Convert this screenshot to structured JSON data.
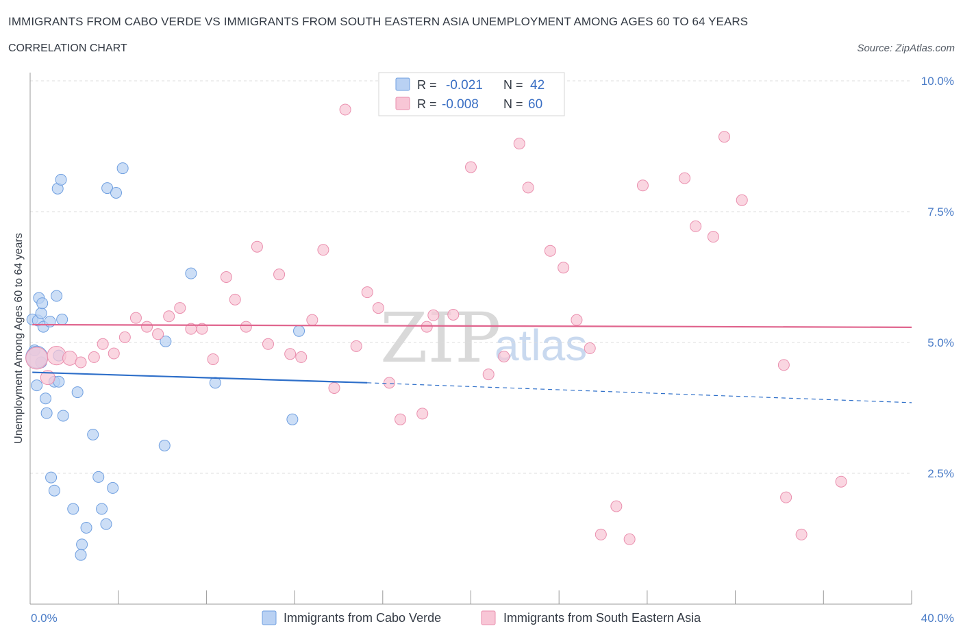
{
  "header": {
    "title": "IMMIGRANTS FROM CABO VERDE VS IMMIGRANTS FROM SOUTH EASTERN ASIA UNEMPLOYMENT AMONG AGES 60 TO 64 YEARS",
    "subtitle": "CORRELATION CHART",
    "source": "Source: ZipAtlas.com"
  },
  "watermark": {
    "zip": "ZIP",
    "atlas": "atlas"
  },
  "colors": {
    "blue_fill": "#b9d1f3",
    "blue_stroke": "#6f9fe0",
    "blue_line": "#2e6fc9",
    "pink_fill": "#f8c6d6",
    "pink_stroke": "#ea8fae",
    "pink_line": "#e0658e",
    "tick_color": "#4a7cc7"
  },
  "legend": {
    "rows": [
      {
        "r_label": "R =",
        "r_value": "-0.021",
        "n_label": "N =",
        "n_value": "42"
      },
      {
        "r_label": "R =",
        "r_value": "-0.008",
        "n_label": "N =",
        "n_value": "60"
      }
    ]
  },
  "chart_data": {
    "type": "scatter",
    "title": "IMMIGRANTS FROM CABO VERDE VS IMMIGRANTS FROM SOUTH EASTERN ASIA UNEMPLOYMENT AMONG AGES 60 TO 64 YEARS",
    "subtitle": "CORRELATION CHART",
    "xlabel": "",
    "ylabel": "Unemployment Among Ages 60 to 64 years",
    "xlim": [
      0,
      40
    ],
    "ylim": [
      0,
      10
    ],
    "x_tick_labels": [
      "0.0%",
      "40.0%"
    ],
    "y_ticks": [
      {
        "value": 2.5,
        "label": "2.5%"
      },
      {
        "value": 5.0,
        "label": "5.0%"
      },
      {
        "value": 7.5,
        "label": "7.5%"
      },
      {
        "value": 10.0,
        "label": "10.0%"
      }
    ],
    "grid": true,
    "legend_position": "top-center",
    "series": [
      {
        "name": "Immigrants from Cabo Verde",
        "color": "blue",
        "R": -0.021,
        "N": 42,
        "trend": {
          "x_start": 0.1,
          "y_start": 4.43,
          "x_solid_end": 15.3,
          "y_solid_end": 4.23,
          "x_end": 40.0,
          "y_end": 3.85
        },
        "points": [
          {
            "x": 0.1,
            "y": 5.44,
            "s": 1
          },
          {
            "x": 0.2,
            "y": 4.85,
            "s": 1
          },
          {
            "x": 0.3,
            "y": 4.18,
            "s": 1
          },
          {
            "x": 0.35,
            "y": 5.42,
            "s": 1
          },
          {
            "x": 0.4,
            "y": 5.85,
            "s": 1
          },
          {
            "x": 0.5,
            "y": 4.62,
            "s": 1
          },
          {
            "x": 0.5,
            "y": 5.56,
            "s": 1
          },
          {
            "x": 0.55,
            "y": 5.75,
            "s": 1
          },
          {
            "x": 0.6,
            "y": 5.3,
            "s": 1
          },
          {
            "x": 0.7,
            "y": 3.93,
            "s": 1
          },
          {
            "x": 0.75,
            "y": 3.65,
            "s": 1
          },
          {
            "x": 0.9,
            "y": 5.4,
            "s": 1
          },
          {
            "x": 0.95,
            "y": 2.42,
            "s": 1
          },
          {
            "x": 1.1,
            "y": 4.25,
            "s": 1
          },
          {
            "x": 1.1,
            "y": 2.17,
            "s": 1
          },
          {
            "x": 1.2,
            "y": 5.89,
            "s": 1
          },
          {
            "x": 1.25,
            "y": 7.94,
            "s": 1
          },
          {
            "x": 1.3,
            "y": 4.75,
            "s": 1
          },
          {
            "x": 1.3,
            "y": 4.25,
            "s": 1
          },
          {
            "x": 1.4,
            "y": 8.11,
            "s": 1
          },
          {
            "x": 1.45,
            "y": 5.44,
            "s": 1
          },
          {
            "x": 1.5,
            "y": 3.6,
            "s": 1
          },
          {
            "x": 1.95,
            "y": 1.82,
            "s": 1
          },
          {
            "x": 2.15,
            "y": 4.05,
            "s": 1
          },
          {
            "x": 2.35,
            "y": 1.14,
            "s": 1
          },
          {
            "x": 2.3,
            "y": 0.94,
            "s": 1
          },
          {
            "x": 2.55,
            "y": 1.46,
            "s": 1
          },
          {
            "x": 2.85,
            "y": 3.24,
            "s": 1
          },
          {
            "x": 3.1,
            "y": 2.43,
            "s": 1
          },
          {
            "x": 3.25,
            "y": 1.82,
            "s": 1
          },
          {
            "x": 3.45,
            "y": 1.53,
            "s": 1
          },
          {
            "x": 3.5,
            "y": 7.95,
            "s": 1
          },
          {
            "x": 3.75,
            "y": 2.22,
            "s": 1
          },
          {
            "x": 3.9,
            "y": 7.86,
            "s": 1
          },
          {
            "x": 4.2,
            "y": 8.33,
            "s": 1
          },
          {
            "x": 6.1,
            "y": 3.03,
            "s": 1
          },
          {
            "x": 6.15,
            "y": 5.02,
            "s": 1
          },
          {
            "x": 7.3,
            "y": 6.32,
            "s": 1
          },
          {
            "x": 8.4,
            "y": 4.23,
            "s": 1
          },
          {
            "x": 11.9,
            "y": 3.53,
            "s": 1
          },
          {
            "x": 12.2,
            "y": 5.22,
            "s": 1
          },
          {
            "x": 0.3,
            "y": 4.72,
            "s": 2
          }
        ]
      },
      {
        "name": "Immigrants from South Eastern Asia",
        "color": "pink",
        "R": -0.008,
        "N": 60,
        "trend": {
          "x_start": 0.1,
          "y_start": 5.34,
          "x_end": 40.0,
          "y_end": 5.29
        },
        "points": [
          {
            "x": 0.3,
            "y": 4.7,
            "s": 2
          },
          {
            "x": 0.8,
            "y": 4.33,
            "s": 1.3
          },
          {
            "x": 1.2,
            "y": 4.75,
            "s": 1.7
          },
          {
            "x": 1.8,
            "y": 4.7,
            "s": 1.3
          },
          {
            "x": 2.3,
            "y": 4.62,
            "s": 1
          },
          {
            "x": 2.9,
            "y": 4.72,
            "s": 1
          },
          {
            "x": 3.3,
            "y": 4.97,
            "s": 1
          },
          {
            "x": 3.8,
            "y": 4.79,
            "s": 1
          },
          {
            "x": 4.3,
            "y": 5.1,
            "s": 1
          },
          {
            "x": 4.8,
            "y": 5.47,
            "s": 1
          },
          {
            "x": 5.3,
            "y": 5.3,
            "s": 1
          },
          {
            "x": 5.8,
            "y": 5.16,
            "s": 1
          },
          {
            "x": 6.3,
            "y": 5.5,
            "s": 1
          },
          {
            "x": 6.8,
            "y": 5.66,
            "s": 1
          },
          {
            "x": 7.3,
            "y": 5.26,
            "s": 1
          },
          {
            "x": 7.8,
            "y": 5.26,
            "s": 1
          },
          {
            "x": 8.3,
            "y": 4.68,
            "s": 1
          },
          {
            "x": 8.9,
            "y": 6.25,
            "s": 1
          },
          {
            "x": 9.3,
            "y": 5.82,
            "s": 1
          },
          {
            "x": 9.8,
            "y": 5.3,
            "s": 1
          },
          {
            "x": 10.3,
            "y": 6.83,
            "s": 1
          },
          {
            "x": 10.8,
            "y": 4.97,
            "s": 1
          },
          {
            "x": 11.3,
            "y": 6.3,
            "s": 1
          },
          {
            "x": 11.8,
            "y": 4.78,
            "s": 1
          },
          {
            "x": 12.3,
            "y": 4.72,
            "s": 1
          },
          {
            "x": 12.8,
            "y": 5.43,
            "s": 1
          },
          {
            "x": 13.3,
            "y": 6.77,
            "s": 1
          },
          {
            "x": 13.8,
            "y": 4.13,
            "s": 1
          },
          {
            "x": 14.3,
            "y": 9.45,
            "s": 1
          },
          {
            "x": 14.8,
            "y": 4.93,
            "s": 1
          },
          {
            "x": 15.3,
            "y": 5.96,
            "s": 1
          },
          {
            "x": 15.8,
            "y": 5.66,
            "s": 1
          },
          {
            "x": 16.3,
            "y": 4.23,
            "s": 1
          },
          {
            "x": 16.8,
            "y": 3.53,
            "s": 1
          },
          {
            "x": 17.8,
            "y": 3.64,
            "s": 1
          },
          {
            "x": 18.3,
            "y": 5.52,
            "s": 1
          },
          {
            "x": 19.2,
            "y": 5.53,
            "s": 1
          },
          {
            "x": 20.0,
            "y": 8.35,
            "s": 1
          },
          {
            "x": 20.8,
            "y": 4.39,
            "s": 1
          },
          {
            "x": 21.5,
            "y": 4.73,
            "s": 1
          },
          {
            "x": 22.2,
            "y": 8.8,
            "s": 1
          },
          {
            "x": 22.6,
            "y": 7.96,
            "s": 1
          },
          {
            "x": 23.6,
            "y": 6.75,
            "s": 1
          },
          {
            "x": 24.2,
            "y": 6.43,
            "s": 1
          },
          {
            "x": 24.8,
            "y": 5.43,
            "s": 1
          },
          {
            "x": 25.4,
            "y": 4.89,
            "s": 1
          },
          {
            "x": 25.9,
            "y": 1.33,
            "s": 1
          },
          {
            "x": 26.6,
            "y": 1.87,
            "s": 1
          },
          {
            "x": 27.2,
            "y": 1.24,
            "s": 1
          },
          {
            "x": 27.8,
            "y": 8.0,
            "s": 1
          },
          {
            "x": 29.7,
            "y": 8.14,
            "s": 1
          },
          {
            "x": 30.2,
            "y": 7.22,
            "s": 1
          },
          {
            "x": 31.0,
            "y": 7.02,
            "s": 1
          },
          {
            "x": 31.5,
            "y": 8.93,
            "s": 1
          },
          {
            "x": 32.3,
            "y": 7.72,
            "s": 1
          },
          {
            "x": 34.2,
            "y": 4.57,
            "s": 1
          },
          {
            "x": 34.3,
            "y": 2.04,
            "s": 1
          },
          {
            "x": 35.0,
            "y": 1.33,
            "s": 1
          },
          {
            "x": 36.8,
            "y": 2.34,
            "s": 1
          },
          {
            "x": 18.0,
            "y": 5.3,
            "s": 1
          }
        ]
      }
    ]
  },
  "bottom_legend": [
    {
      "label": "Immigrants from Cabo Verde"
    },
    {
      "label": "Immigrants from South Eastern Asia"
    }
  ]
}
